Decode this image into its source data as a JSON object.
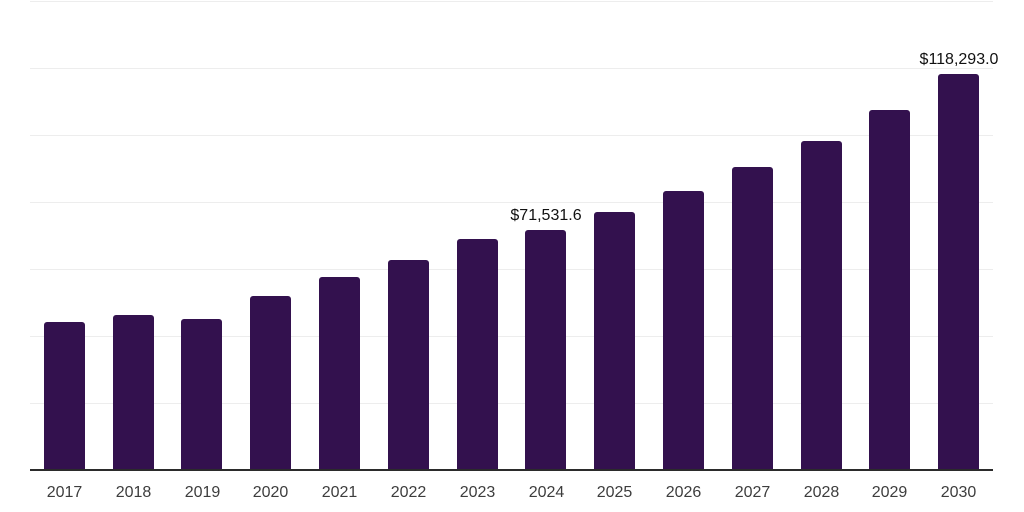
{
  "chart_data": {
    "type": "bar",
    "title": "",
    "xlabel": "",
    "ylabel": "",
    "categories": [
      "2017",
      "2018",
      "2019",
      "2020",
      "2021",
      "2022",
      "2023",
      "2024",
      "2025",
      "2026",
      "2027",
      "2028",
      "2029",
      "2030"
    ],
    "values": [
      44200,
      46300,
      45200,
      51800,
      57600,
      62800,
      69000,
      71531.6,
      77000,
      83400,
      90400,
      98200,
      107500,
      118293.0
    ],
    "data_labels": {
      "2024": "$71,531.6",
      "2030": "$118,293.0"
    },
    "ylim": [
      0,
      140000
    ],
    "gridline_step": 20000,
    "grid": true,
    "legend": false,
    "y_axis_labels_visible": false,
    "colors": {
      "bar": "#33114e",
      "gridline": "#ededed",
      "axis": "#2b2b2b",
      "tick_label": "#3d3d3d",
      "data_label": "#111111",
      "background": "#ffffff"
    }
  }
}
